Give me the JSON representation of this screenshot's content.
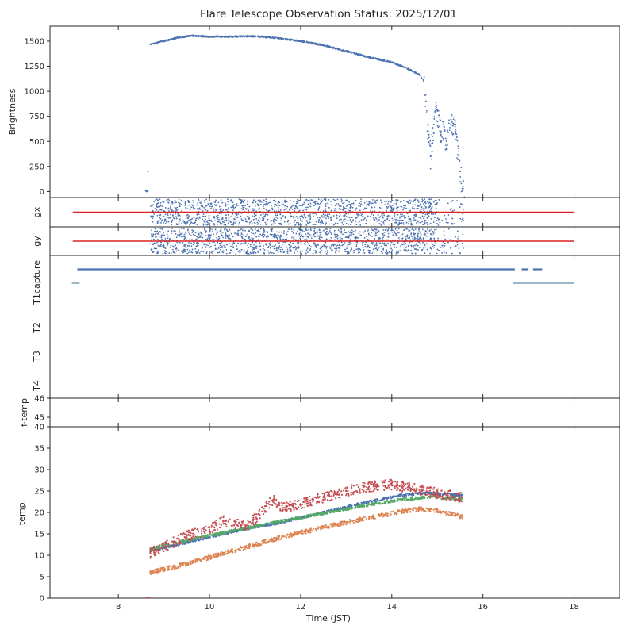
{
  "chart_data": {
    "type": "scatter",
    "title": "Flare Telescope Observation Status: 2025/12/01",
    "xlabel": "Time (JST)",
    "xlim": [
      6.5,
      19.0
    ],
    "xticks": [
      8,
      10,
      12,
      14,
      16,
      18
    ],
    "colors": {
      "blue": "#4c72b0",
      "red": "#dd2222",
      "temp_red": "#c44e52",
      "orange": "#dd8452",
      "green": "#55a868"
    },
    "panels": {
      "brightness": {
        "ylabel": "Brightness",
        "ylim": [
          -60,
          1650
        ],
        "yticks": [
          0,
          250,
          500,
          750,
          1000,
          1250,
          1500
        ],
        "series": [
          {
            "name": "Brightness",
            "points": [
              [
                8.62,
                0
              ],
              [
                8.65,
                200
              ],
              [
                8.7,
                1470
              ],
              [
                9.0,
                1500
              ],
              [
                9.3,
                1535
              ],
              [
                9.6,
                1555
              ],
              [
                10.0,
                1545
              ],
              [
                10.5,
                1545
              ],
              [
                11.0,
                1550
              ],
              [
                11.5,
                1530
              ],
              [
                12.0,
                1500
              ],
              [
                12.5,
                1460
              ],
              [
                13.0,
                1400
              ],
              [
                13.5,
                1340
              ],
              [
                14.0,
                1290
              ],
              [
                14.3,
                1235
              ],
              [
                14.6,
                1170
              ],
              [
                14.7,
                1100
              ],
              [
                14.75,
                900
              ],
              [
                14.8,
                600
              ],
              [
                14.85,
                350
              ],
              [
                14.95,
                800
              ],
              [
                15.05,
                650
              ],
              [
                15.2,
                500
              ],
              [
                15.3,
                720
              ],
              [
                15.4,
                580
              ],
              [
                15.5,
                200
              ],
              [
                15.55,
                30
              ]
            ]
          }
        ]
      },
      "gx": {
        "ylabel": "gx",
        "reference_level": 0,
        "reference_range": [
          7.0,
          18.0
        ],
        "data_range": [
          8.7,
          15.6
        ]
      },
      "gy": {
        "ylabel": "gy",
        "reference_level": 0,
        "reference_range": [
          7.0,
          18.0
        ],
        "data_range": [
          8.7,
          15.6
        ]
      },
      "status": {
        "yticklabels": [
          "capture",
          "T1",
          "T2",
          "T3",
          "T4"
        ],
        "capture_segments": [
          [
            7.1,
            16.7
          ],
          [
            16.85,
            17.0
          ],
          [
            17.1,
            17.3
          ]
        ],
        "t1_segments": [
          [
            6.98,
            7.15
          ],
          [
            16.65,
            18.0
          ]
        ]
      },
      "ftemp": {
        "ylabel": "f-temp",
        "ylim": [
          44.5,
          46
        ],
        "yticks": [
          45,
          46
        ]
      },
      "temp": {
        "ylabel": "temp.",
        "ylim": [
          0,
          40
        ],
        "yticks": [
          0,
          5,
          10,
          15,
          20,
          25,
          30,
          35,
          40
        ],
        "series": [
          {
            "name": "red",
            "points": [
              [
                8.7,
                10.5
              ],
              [
                9.0,
                12
              ],
              [
                9.5,
                14.5
              ],
              [
                10.0,
                16
              ],
              [
                10.3,
                18
              ],
              [
                10.8,
                17
              ],
              [
                11.0,
                18.5
              ],
              [
                11.4,
                23
              ],
              [
                11.6,
                21
              ],
              [
                12.0,
                22
              ],
              [
                12.5,
                23.5
              ],
              [
                13.0,
                25
              ],
              [
                13.5,
                26
              ],
              [
                14.0,
                26.5
              ],
              [
                14.5,
                25.5
              ],
              [
                15.0,
                24.5
              ],
              [
                15.5,
                23.5
              ]
            ]
          },
          {
            "name": "blue",
            "points": [
              [
                8.7,
                11
              ],
              [
                9.5,
                13
              ],
              [
                10.5,
                15.5
              ],
              [
                11.5,
                17.5
              ],
              [
                12.5,
                20
              ],
              [
                13.5,
                22.5
              ],
              [
                14.2,
                24
              ],
              [
                14.8,
                24.5
              ],
              [
                15.5,
                24
              ]
            ]
          },
          {
            "name": "green",
            "points": [
              [
                8.7,
                11.5
              ],
              [
                9.5,
                13.5
              ],
              [
                10.5,
                15.7
              ],
              [
                11.5,
                17.8
              ],
              [
                12.5,
                19.8
              ],
              [
                13.5,
                21.8
              ],
              [
                14.2,
                23
              ],
              [
                14.8,
                23.6
              ],
              [
                15.5,
                23.2
              ]
            ]
          },
          {
            "name": "orange",
            "points": [
              [
                8.7,
                6
              ],
              [
                9.5,
                8
              ],
              [
                10.5,
                11
              ],
              [
                11.5,
                14
              ],
              [
                12.5,
                16.5
              ],
              [
                13.5,
                18.8
              ],
              [
                14.2,
                20.2
              ],
              [
                14.6,
                20.8
              ],
              [
                15.0,
                20.5
              ],
              [
                15.55,
                19
              ]
            ]
          }
        ]
      }
    }
  }
}
